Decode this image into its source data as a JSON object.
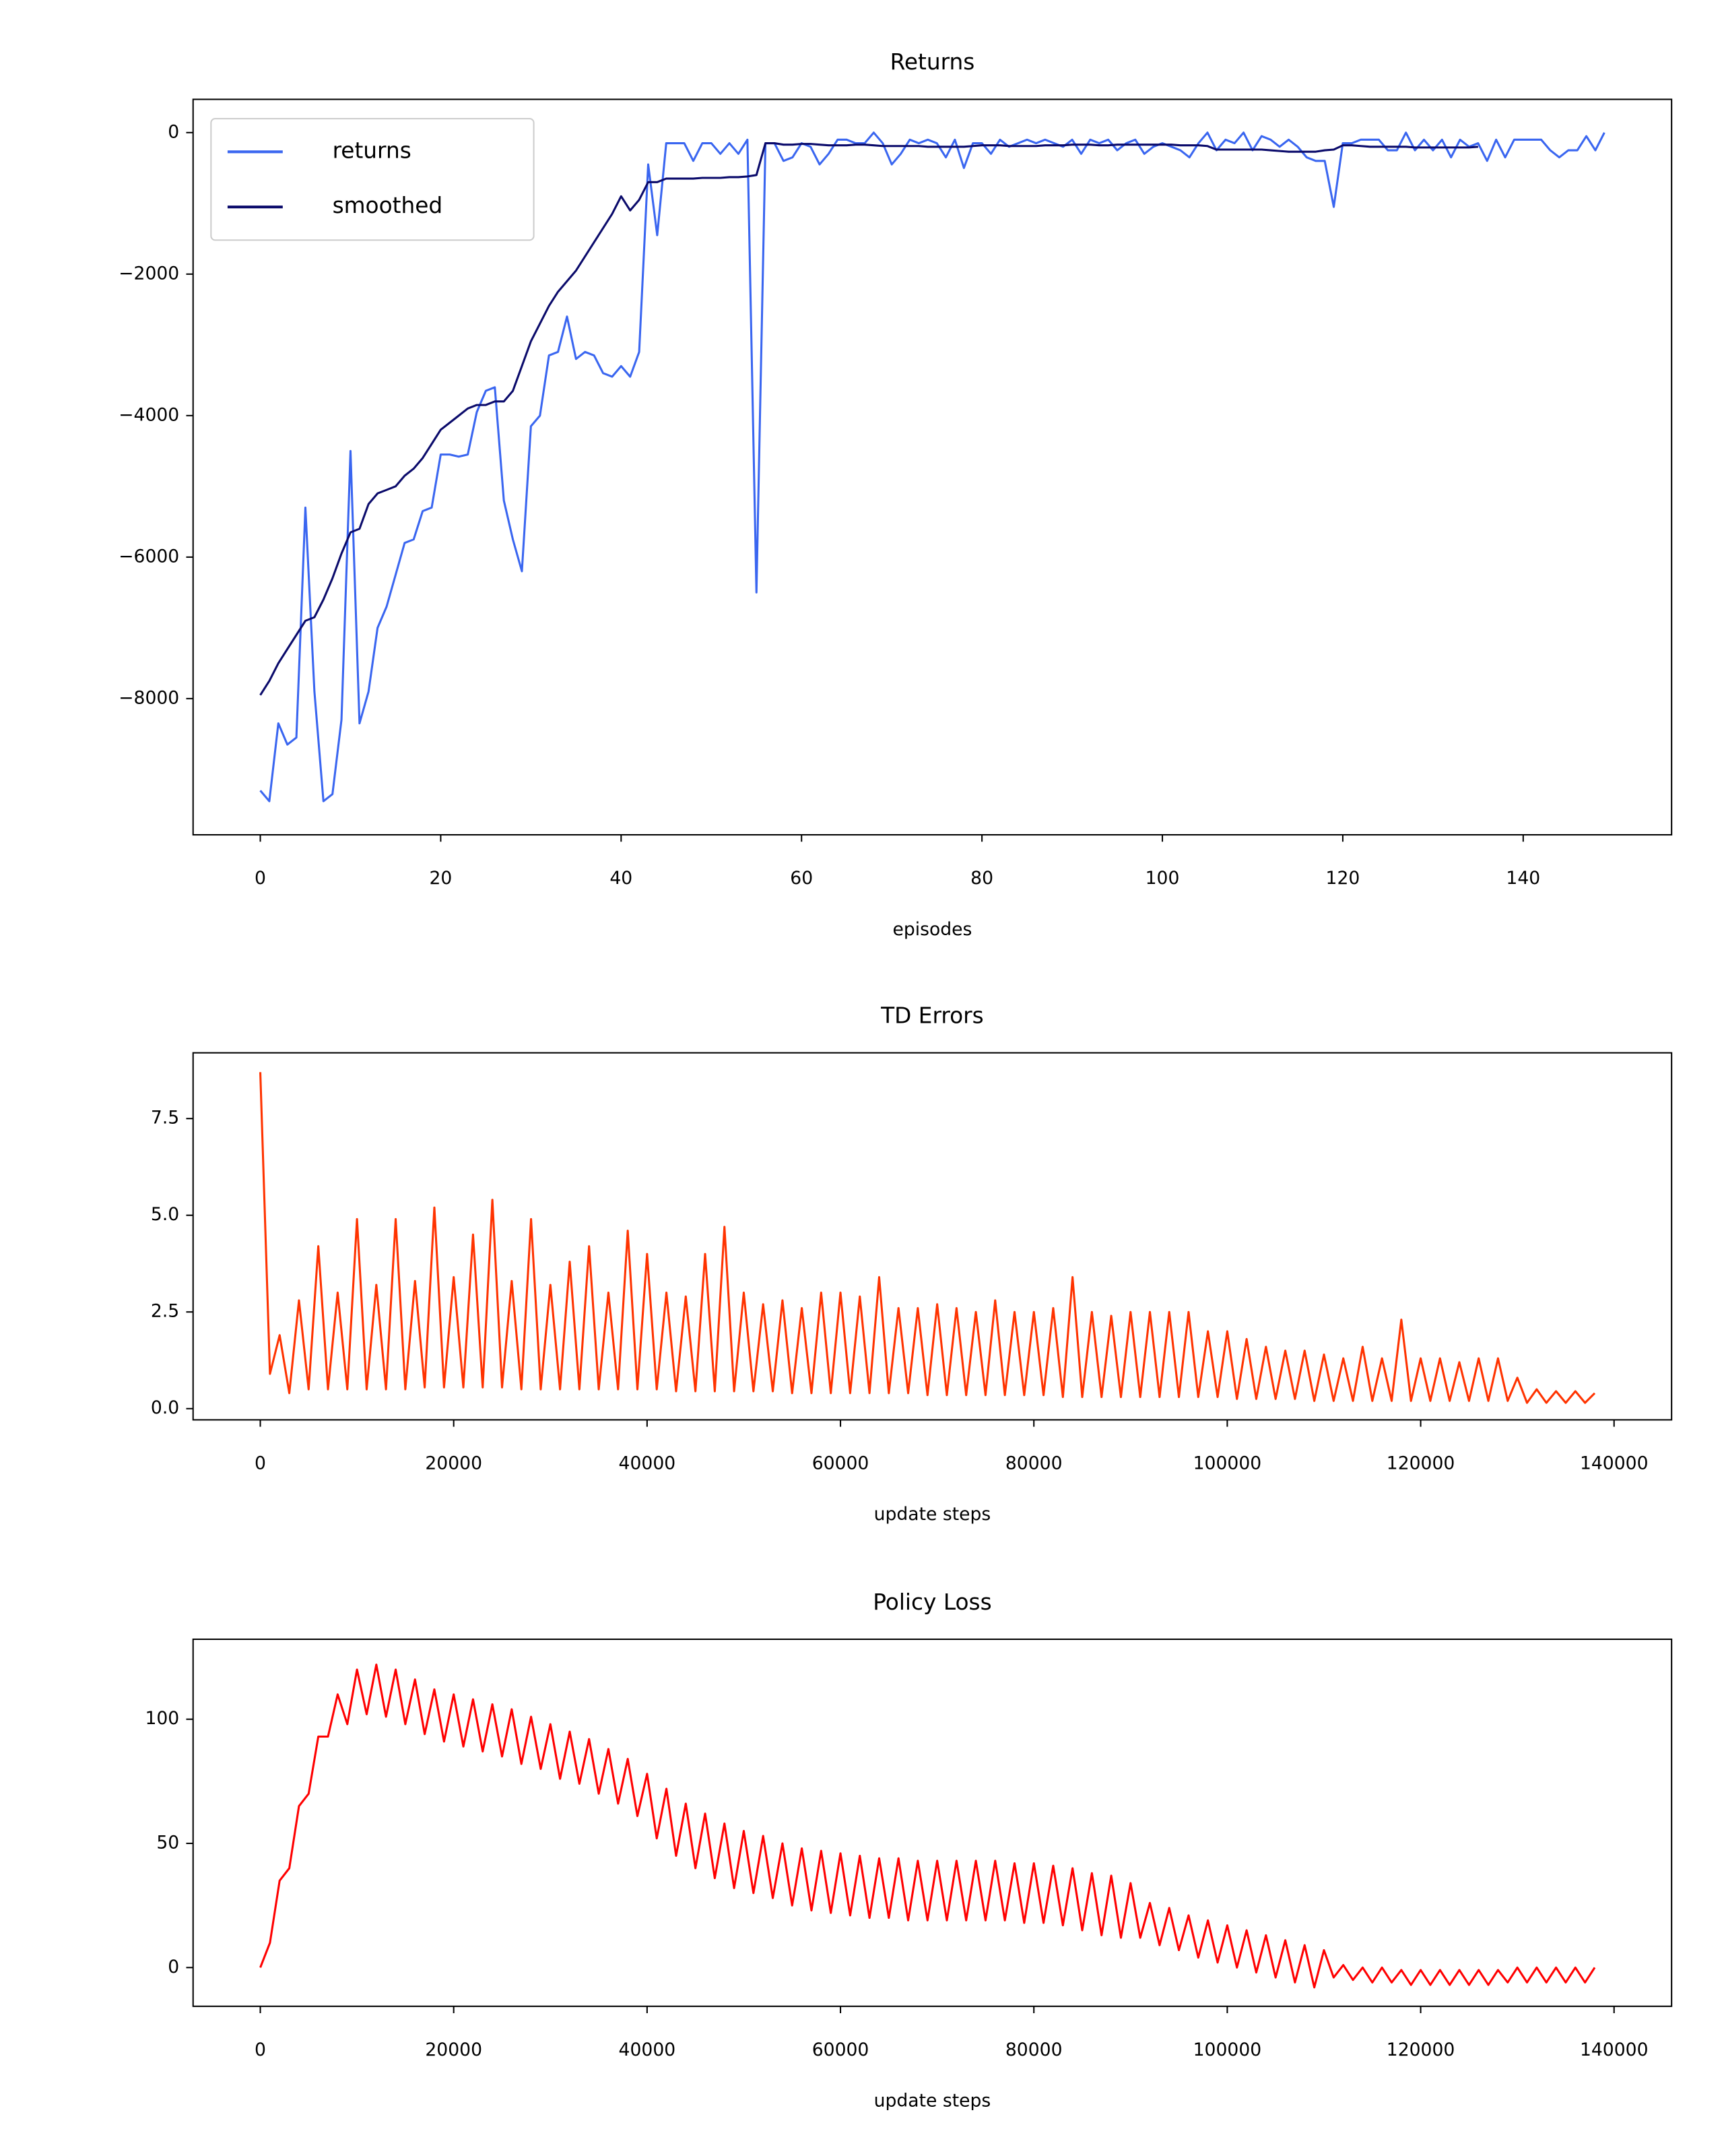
{
  "chart_data": [
    {
      "type": "line",
      "title": "Returns",
      "xlabel": "episodes",
      "legend": "upper left",
      "grid": false,
      "x": [
        0,
        1,
        2,
        3,
        4,
        5,
        6,
        7,
        8,
        9,
        10,
        11,
        12,
        13,
        14,
        15,
        16,
        17,
        18,
        19,
        20,
        21,
        22,
        23,
        24,
        25,
        26,
        27,
        28,
        29,
        30,
        31,
        32,
        33,
        34,
        35,
        36,
        37,
        38,
        39,
        40,
        41,
        42,
        43,
        44,
        45,
        46,
        47,
        48,
        49,
        50,
        51,
        52,
        53,
        54,
        55,
        56,
        57,
        58,
        59,
        60,
        61,
        62,
        63,
        64,
        65,
        66,
        67,
        68,
        69,
        70,
        71,
        72,
        73,
        74,
        75,
        76,
        77,
        78,
        79,
        80,
        81,
        82,
        83,
        84,
        85,
        86,
        87,
        88,
        89,
        90,
        91,
        92,
        93,
        94,
        95,
        96,
        97,
        98,
        99,
        100,
        101,
        102,
        103,
        104,
        105,
        106,
        107,
        108,
        109,
        110,
        111,
        112,
        113,
        114,
        115,
        116,
        117,
        118,
        119,
        120,
        121,
        122,
        123,
        124,
        125,
        126,
        127,
        128,
        129,
        130,
        131,
        132,
        133,
        134,
        135,
        136,
        137,
        138,
        139,
        140,
        141,
        142,
        143,
        144,
        145,
        146,
        147,
        148,
        149
      ],
      "series": [
        {
          "name": "returns",
          "color": "#3a66f0",
          "values": [
            -9300,
            -9450,
            -8350,
            -8650,
            -8550,
            -5300,
            -7900,
            -9450,
            -9350,
            -8300,
            -4500,
            -8350,
            -7900,
            -7000,
            -6700,
            -6250,
            -5800,
            -5750,
            -5350,
            -5300,
            -4550,
            -4550,
            -4580,
            -4550,
            -3950,
            -3650,
            -3600,
            -5200,
            -5750,
            -6200,
            -4150,
            -4000,
            -3150,
            -3100,
            -2600,
            -3200,
            -3100,
            -3150,
            -3400,
            -3450,
            -3300,
            -3450,
            -3100,
            -450,
            -1450,
            -150,
            -150,
            -150,
            -400,
            -150,
            -150,
            -300,
            -150,
            -300,
            -100,
            -6500,
            -150,
            -150,
            -400,
            -350,
            -150,
            -200,
            -450,
            -300,
            -100,
            -100,
            -150,
            -150,
            0,
            -150,
            -450,
            -300,
            -100,
            -150,
            -100,
            -150,
            -350,
            -100,
            -500,
            -150,
            -150,
            -300,
            -100,
            -200,
            -150,
            -100,
            -150,
            -100,
            -150,
            -200,
            -100,
            -300,
            -100,
            -150,
            -100,
            -250,
            -150,
            -100,
            -300,
            -200,
            -150,
            -200,
            -250,
            -350,
            -150,
            0,
            -250,
            -100,
            -150,
            0,
            -250,
            -50,
            -100,
            -200,
            -100,
            -200,
            -350,
            -400,
            -400,
            -1050,
            -150,
            -150,
            -100,
            -100,
            -100,
            -250,
            -250,
            0,
            -250,
            -100,
            -250,
            -100,
            -350,
            -100,
            -200,
            -150,
            -400,
            -100,
            -350,
            -100,
            -100,
            -100,
            -100,
            -250,
            -350,
            -250,
            -250,
            -50,
            -250,
            0
          ]
        },
        {
          "name": "smoothed",
          "color": "#0b0b6b",
          "values": [
            -7950,
            -7750,
            -7500,
            -7300,
            -7100,
            -6900,
            -6850,
            -6600,
            -6300,
            -5950,
            -5650,
            -5600,
            -5250,
            -5100,
            -5050,
            -5000,
            -4850,
            -4750,
            -4600,
            -4400,
            -4200,
            -4100,
            -4000,
            -3900,
            -3850,
            -3850,
            -3800,
            -3800,
            -3650,
            -3300,
            -2950,
            -2700,
            -2450,
            -2250,
            -2100,
            -1950,
            -1750,
            -1550,
            -1350,
            -1150,
            -900,
            -1100,
            -950,
            -700,
            -700,
            -650,
            -650,
            -650,
            -650,
            -640,
            -640,
            -640,
            -630,
            -630,
            -620,
            -600,
            -150,
            -150,
            -170,
            -170,
            -160,
            -160,
            -170,
            -180,
            -180,
            -180,
            -170,
            -170,
            -180,
            -190,
            -190,
            -190,
            -190,
            -190,
            -200,
            -200,
            -200,
            -200,
            -200,
            -190,
            -180,
            -180,
            -180,
            -190,
            -190,
            -190,
            -190,
            -180,
            -180,
            -180,
            -170,
            -170,
            -170,
            -180,
            -180,
            -170,
            -170,
            -170,
            -170,
            -170,
            -170,
            -170,
            -180,
            -180,
            -180,
            -190,
            -240,
            -240,
            -240,
            -240,
            -240,
            -240,
            -250,
            -260,
            -270,
            -270,
            -270,
            -270,
            -250,
            -240,
            -180,
            -180,
            -190,
            -200,
            -200,
            -200,
            -200,
            -200,
            -210,
            -210,
            -210,
            -210,
            -210,
            -210,
            -210,
            -200,
            null,
            null,
            null,
            null,
            null,
            null,
            null,
            null,
            null,
            null,
            null,
            null,
            null,
            null
          ]
        }
      ],
      "xlim": [
        -7.45,
        156.45
      ],
      "xticks": [
        0,
        20,
        40,
        60,
        80,
        100,
        120,
        140
      ],
      "ylim": [
        -9925,
        470
      ],
      "yticks": [
        {
          "value": -8000,
          "label": "−8000"
        },
        {
          "value": -6000,
          "label": "−6000"
        },
        {
          "value": -4000,
          "label": "−4000"
        },
        {
          "value": -2000,
          "label": "−2000"
        },
        0
      ]
    },
    {
      "type": "line",
      "title": "TD Errors",
      "xlabel": "update steps",
      "grid": false,
      "x": [
        0,
        1000,
        2000,
        3000,
        4000,
        5000,
        6000,
        7000,
        8000,
        9000,
        10000,
        11000,
        12000,
        13000,
        14000,
        15000,
        16000,
        17000,
        18000,
        19000,
        20000,
        21000,
        22000,
        23000,
        24000,
        25000,
        26000,
        27000,
        28000,
        29000,
        30000,
        31000,
        32000,
        33000,
        34000,
        35000,
        36000,
        37000,
        38000,
        39000,
        40000,
        41000,
        42000,
        43000,
        44000,
        45000,
        46000,
        47000,
        48000,
        49000,
        50000,
        51000,
        52000,
        53000,
        54000,
        55000,
        56000,
        57000,
        58000,
        59000,
        60000,
        61000,
        62000,
        63000,
        64000,
        65000,
        66000,
        67000,
        68000,
        69000,
        70000,
        71000,
        72000,
        73000,
        74000,
        75000,
        76000,
        77000,
        78000,
        79000,
        80000,
        81000,
        82000,
        83000,
        84000,
        85000,
        86000,
        87000,
        88000,
        89000,
        90000,
        91000,
        92000,
        93000,
        94000,
        95000,
        96000,
        97000,
        98000,
        99000,
        100000,
        101000,
        102000,
        103000,
        104000,
        105000,
        106000,
        107000,
        108000,
        109000,
        110000,
        111000,
        112000,
        113000,
        114000,
        115000,
        116000,
        117000,
        118000,
        119000,
        120000,
        121000,
        122000,
        123000,
        124000,
        125000,
        126000,
        127000,
        128000,
        129000,
        130000,
        131000,
        132000,
        133000,
        134000,
        135000,
        136000,
        137000,
        138000
      ],
      "series": [
        {
          "color": "#ff3300",
          "values": [
            8.7,
            0.9,
            1.9,
            0.4,
            2.8,
            0.5,
            4.2,
            0.5,
            3.0,
            0.5,
            4.9,
            0.5,
            3.2,
            0.5,
            4.9,
            0.5,
            3.3,
            0.55,
            5.2,
            0.55,
            3.4,
            0.55,
            4.5,
            0.55,
            5.4,
            0.55,
            3.3,
            0.5,
            4.9,
            0.5,
            3.2,
            0.5,
            3.8,
            0.5,
            4.2,
            0.5,
            3.0,
            0.5,
            4.6,
            0.5,
            4.0,
            0.5,
            3.0,
            0.45,
            2.9,
            0.45,
            4.0,
            0.45,
            4.7,
            0.45,
            3.0,
            0.45,
            2.7,
            0.45,
            2.8,
            0.4,
            2.6,
            0.4,
            3.0,
            0.4,
            3.0,
            0.4,
            2.9,
            0.4,
            3.4,
            0.4,
            2.6,
            0.4,
            2.6,
            0.35,
            2.7,
            0.35,
            2.6,
            0.35,
            2.5,
            0.35,
            2.8,
            0.35,
            2.5,
            0.35,
            2.5,
            0.35,
            2.6,
            0.3,
            3.4,
            0.3,
            2.5,
            0.3,
            2.4,
            0.3,
            2.5,
            0.3,
            2.5,
            0.3,
            2.5,
            0.3,
            2.5,
            0.3,
            2.0,
            0.3,
            2.0,
            0.25,
            1.8,
            0.25,
            1.6,
            0.25,
            1.5,
            0.25,
            1.5,
            0.2,
            1.4,
            0.2,
            1.3,
            0.2,
            1.6,
            0.2,
            1.3,
            0.2,
            2.3,
            0.2,
            1.3,
            0.2,
            1.3,
            0.2,
            1.2,
            0.2,
            1.3,
            0.2,
            1.3,
            0.2,
            0.8,
            0.15,
            0.5,
            0.15,
            0.45,
            0.15,
            0.45,
            0.15,
            0.4
          ]
        }
      ],
      "xlim": [
        -6950,
        145950
      ],
      "xticks": [
        0,
        20000,
        40000,
        60000,
        80000,
        100000,
        120000,
        140000
      ],
      "ylim": [
        -0.29,
        9.2
      ],
      "yticks": [
        {
          "value": 0,
          "label": "0.0"
        },
        2.5,
        {
          "value": 5,
          "label": "5.0"
        },
        7.5
      ]
    },
    {
      "type": "line",
      "title": "Policy Loss",
      "xlabel": "update steps",
      "grid": false,
      "x": [
        0,
        1000,
        2000,
        3000,
        4000,
        5000,
        6000,
        7000,
        8000,
        9000,
        10000,
        11000,
        12000,
        13000,
        14000,
        15000,
        16000,
        17000,
        18000,
        19000,
        20000,
        21000,
        22000,
        23000,
        24000,
        25000,
        26000,
        27000,
        28000,
        29000,
        30000,
        31000,
        32000,
        33000,
        34000,
        35000,
        36000,
        37000,
        38000,
        39000,
        40000,
        41000,
        42000,
        43000,
        44000,
        45000,
        46000,
        47000,
        48000,
        49000,
        50000,
        51000,
        52000,
        53000,
        54000,
        55000,
        56000,
        57000,
        58000,
        59000,
        60000,
        61000,
        62000,
        63000,
        64000,
        65000,
        66000,
        67000,
        68000,
        69000,
        70000,
        71000,
        72000,
        73000,
        74000,
        75000,
        76000,
        77000,
        78000,
        79000,
        80000,
        81000,
        82000,
        83000,
        84000,
        85000,
        86000,
        87000,
        88000,
        89000,
        90000,
        91000,
        92000,
        93000,
        94000,
        95000,
        96000,
        97000,
        98000,
        99000,
        100000,
        101000,
        102000,
        103000,
        104000,
        105000,
        106000,
        107000,
        108000,
        109000,
        110000,
        111000,
        112000,
        113000,
        114000,
        115000,
        116000,
        117000,
        118000,
        119000,
        120000,
        121000,
        122000,
        123000,
        124000,
        125000,
        126000,
        127000,
        128000,
        129000,
        130000,
        131000,
        132000,
        133000,
        134000,
        135000,
        136000,
        137000,
        138000
      ],
      "series": [
        {
          "color": "#ff0000",
          "values": [
            0,
            10,
            35,
            40,
            65,
            70,
            93,
            93,
            110,
            98,
            120,
            102,
            122,
            101,
            120,
            98,
            116,
            94,
            112,
            91,
            110,
            89,
            108,
            87,
            106,
            85,
            104,
            82,
            101,
            80,
            98,
            76,
            95,
            74,
            92,
            70,
            88,
            66,
            84,
            61,
            78,
            52,
            72,
            45,
            66,
            40,
            62,
            36,
            58,
            32,
            55,
            30,
            53,
            28,
            50,
            25,
            48,
            23,
            47,
            22,
            46,
            21,
            45,
            20,
            44,
            20,
            44,
            19,
            43,
            19,
            43,
            19,
            43,
            19,
            43,
            19,
            43,
            19,
            42,
            18,
            42,
            18,
            41,
            17,
            40,
            15,
            38,
            13,
            37,
            12,
            34,
            12,
            26,
            9,
            24,
            7,
            21,
            4,
            19,
            2,
            17,
            0,
            15,
            -2,
            13,
            -4,
            11,
            -6,
            9,
            -8,
            7,
            -4,
            1,
            -5,
            0,
            -6,
            0,
            -6,
            -1,
            -7,
            -1,
            -7,
            -1,
            -7,
            -1,
            -7,
            -1,
            -7,
            -1,
            -6,
            0,
            -6,
            0,
            -6,
            0,
            -6,
            0,
            -6,
            0
          ]
        }
      ],
      "xlim": [
        -6950,
        145950
      ],
      "xticks": [
        0,
        20000,
        40000,
        60000,
        80000,
        100000,
        120000,
        140000
      ],
      "ylim": [
        -15.6,
        132.2
      ],
      "yticks": [
        0,
        50,
        100
      ]
    }
  ]
}
